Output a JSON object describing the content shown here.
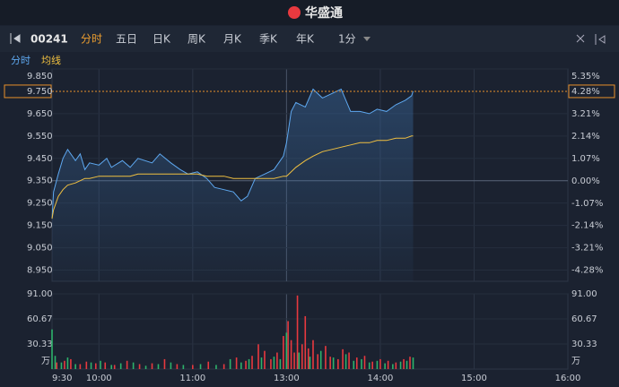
{
  "header": {
    "brand": "华盛通"
  },
  "toolbar": {
    "code": "00241",
    "tabs": [
      "分时",
      "五日",
      "日K",
      "周K",
      "月K",
      "季K",
      "年K",
      "1分"
    ],
    "active": 0
  },
  "chart_data": [
    {
      "type": "line",
      "legend": [
        "分时",
        "均线"
      ],
      "prev_close": 9.35,
      "last_price": {
        "value": 9.75,
        "label": "9.750"
      },
      "last_change": {
        "value": 4.28,
        "label": "4.28%"
      },
      "up_color": "#e8393f",
      "down_color": "#2db36b",
      "x": [
        0,
        1,
        4,
        7,
        10,
        15,
        18,
        21,
        24,
        30,
        35,
        38,
        45,
        50,
        55,
        64,
        69,
        76,
        82,
        87,
        93,
        99,
        104,
        110,
        116,
        121,
        125,
        130,
        136,
        142,
        148,
        150,
        153,
        156,
        162,
        167,
        173,
        179,
        185,
        191,
        197,
        203,
        208,
        214,
        220,
        226,
        230,
        231
      ],
      "series": [
        {
          "name": "分时",
          "color": "#5ea8f0",
          "values": [
            9.18,
            9.3,
            9.38,
            9.45,
            9.49,
            9.44,
            9.47,
            9.4,
            9.43,
            9.42,
            9.45,
            9.41,
            9.44,
            9.41,
            9.45,
            9.43,
            9.47,
            9.43,
            9.4,
            9.38,
            9.39,
            9.36,
            9.32,
            9.31,
            9.3,
            9.26,
            9.28,
            9.36,
            9.38,
            9.4,
            9.46,
            9.52,
            9.66,
            9.7,
            9.68,
            9.76,
            9.72,
            9.74,
            9.76,
            9.66,
            9.66,
            9.65,
            9.67,
            9.66,
            9.69,
            9.71,
            9.73,
            9.75
          ]
        },
        {
          "name": "均线",
          "color": "#f0c040",
          "values": [
            9.18,
            9.22,
            9.28,
            9.31,
            9.33,
            9.34,
            9.35,
            9.36,
            9.36,
            9.37,
            9.37,
            9.37,
            9.37,
            9.37,
            9.38,
            9.38,
            9.38,
            9.38,
            9.38,
            9.38,
            9.38,
            9.37,
            9.37,
            9.37,
            9.36,
            9.36,
            9.36,
            9.36,
            9.36,
            9.36,
            9.37,
            9.37,
            9.39,
            9.41,
            9.44,
            9.46,
            9.48,
            9.49,
            9.5,
            9.51,
            9.52,
            9.52,
            9.53,
            9.53,
            9.54,
            9.54,
            9.55,
            9.55
          ]
        }
      ],
      "xlim": [
        0,
        330
      ],
      "xticks": [
        {
          "value": 0,
          "label": "9:30"
        },
        {
          "value": 30,
          "label": "10:00"
        },
        {
          "value": 90,
          "label": "11:00"
        },
        {
          "value": 150,
          "label": "13:00"
        },
        {
          "value": 210,
          "label": "14:00"
        },
        {
          "value": 270,
          "label": "15:00"
        },
        {
          "value": 330,
          "label": "16:00"
        }
      ],
      "ylim": [
        8.9,
        9.85
      ],
      "yticks": [
        {
          "value": 9.85,
          "label": "9.850"
        },
        {
          "value": 9.65,
          "label": "9.650"
        },
        {
          "value": 9.55,
          "label": "9.550"
        },
        {
          "value": 9.45,
          "label": "9.450"
        },
        {
          "value": 9.35,
          "label": "9.350"
        },
        {
          "value": 9.25,
          "label": "9.250"
        },
        {
          "value": 9.15,
          "label": "9.150"
        },
        {
          "value": 9.05,
          "label": "9.050"
        },
        {
          "value": 8.95,
          "label": "8.950"
        }
      ],
      "y2lim": [
        -4.81,
        5.35
      ],
      "y2ticks": [
        {
          "value": 5.35,
          "label": "5.35%"
        },
        {
          "value": 3.21,
          "label": "3.21%"
        },
        {
          "value": 2.14,
          "label": "2.14%"
        },
        {
          "value": 1.07,
          "label": "1.07%"
        },
        {
          "value": 0,
          "label": "0.00%"
        },
        {
          "value": -1.07,
          "label": "-1.07%"
        },
        {
          "value": -2.14,
          "label": "-2.14%"
        },
        {
          "value": -3.21,
          "label": "-3.21%"
        },
        {
          "value": -4.28,
          "label": "-4.28%"
        }
      ]
    },
    {
      "type": "bar",
      "unit": "万",
      "series": [
        {
          "color": "#e8393f",
          "x": [
            3,
            8,
            12,
            18,
            22,
            28,
            34,
            40,
            48,
            56,
            64,
            72,
            80,
            90,
            100,
            110,
            118,
            124,
            128,
            132,
            136,
            140,
            144,
            148,
            151,
            153,
            155,
            157,
            160,
            162,
            164,
            167,
            170,
            175,
            178,
            183,
            186,
            190,
            195,
            200,
            205,
            210,
            215,
            220,
            225,
            229
          ],
          "values": [
            8,
            10,
            12,
            6,
            9,
            7,
            8,
            5,
            10,
            6,
            7,
            12,
            6,
            5,
            9,
            6,
            14,
            10,
            16,
            30,
            22,
            12,
            20,
            40,
            58,
            35,
            20,
            89,
            30,
            64,
            25,
            35,
            18,
            28,
            15,
            12,
            24,
            20,
            14,
            16,
            9,
            12,
            10,
            8,
            12,
            15
          ]
        },
        {
          "color": "#2db36b",
          "x": [
            0,
            2,
            6,
            10,
            15,
            25,
            31,
            38,
            44,
            52,
            60,
            68,
            76,
            84,
            95,
            105,
            114,
            121,
            126,
            134,
            142,
            146,
            150,
            158,
            165,
            172,
            180,
            188,
            193,
            198,
            203,
            208,
            213,
            218,
            223,
            227,
            231
          ],
          "values": [
            48,
            16,
            8,
            14,
            6,
            8,
            10,
            5,
            7,
            8,
            4,
            6,
            8,
            5,
            6,
            5,
            12,
            8,
            12,
            14,
            15,
            12,
            44,
            20,
            15,
            22,
            14,
            18,
            10,
            12,
            8,
            10,
            7,
            6,
            9,
            10,
            14
          ]
        }
      ],
      "xlim": [
        0,
        330
      ],
      "xticks": [
        {
          "value": 0,
          "label": "9:30"
        },
        {
          "value": 30,
          "label": "10:00"
        },
        {
          "value": 90,
          "label": "11:00"
        },
        {
          "value": 150,
          "label": "13:00"
        },
        {
          "value": 210,
          "label": "14:00"
        },
        {
          "value": 270,
          "label": "15:00"
        },
        {
          "value": 330,
          "label": "16:00"
        }
      ],
      "ylim": [
        0,
        91
      ],
      "yticks": [
        {
          "value": 91,
          "label": "91.00"
        },
        {
          "value": 60.67,
          "label": "60.67"
        },
        {
          "value": 30.33,
          "label": "30.33"
        }
      ]
    }
  ]
}
